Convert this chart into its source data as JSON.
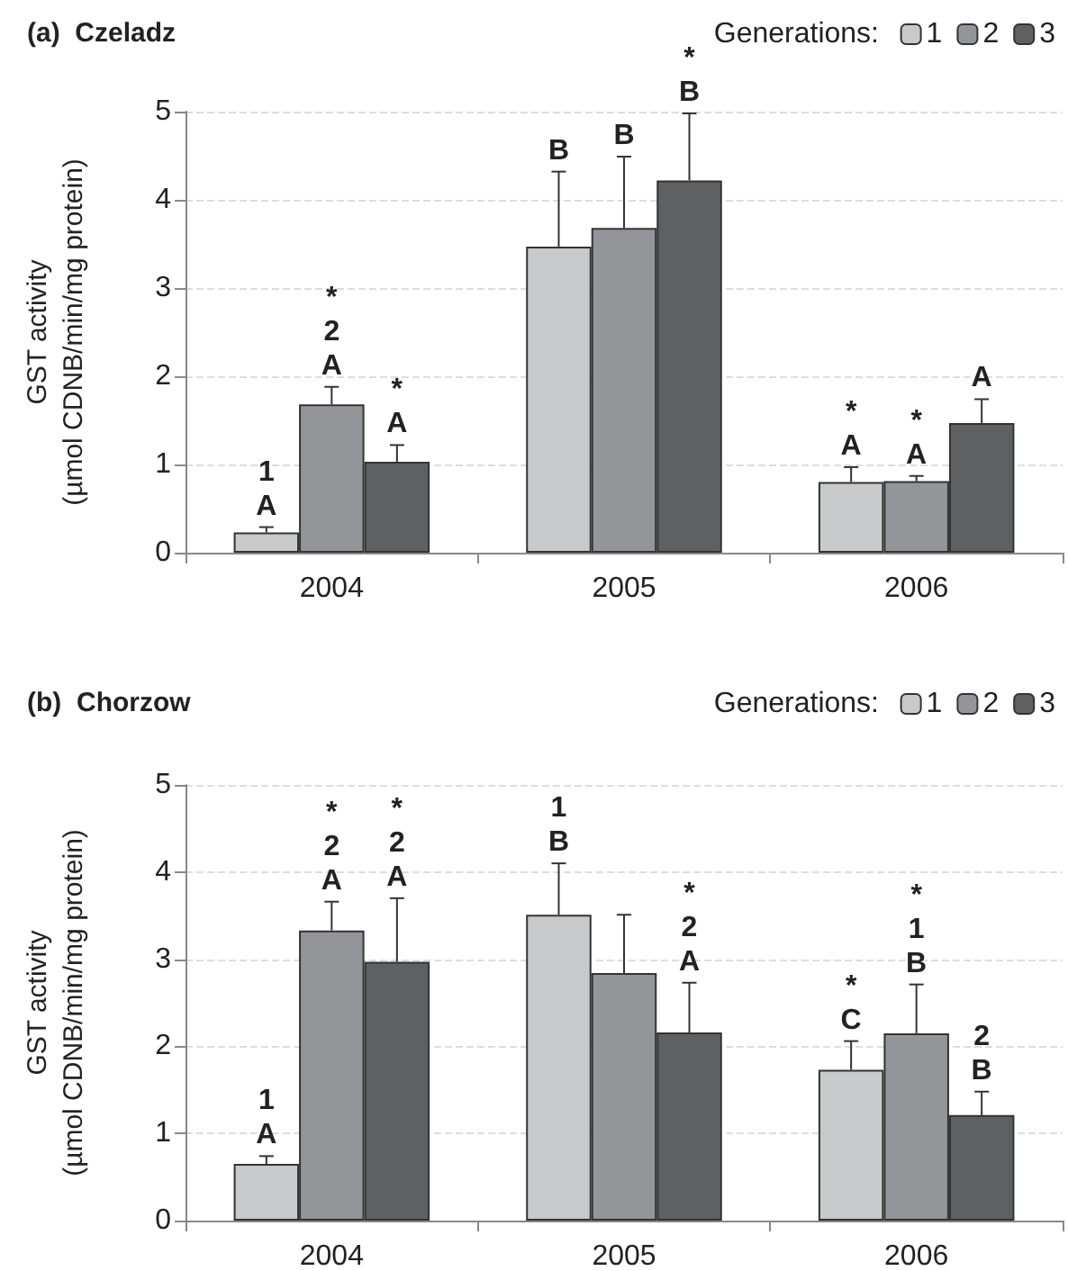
{
  "chart_data": [
    {
      "type": "bar",
      "title": "(a)  Czeladz",
      "ylabel": "GST activity\n(µmol CDNB/min/mg protein)",
      "legend_title": "Generations:",
      "legend": "top right",
      "grid": "y",
      "categories": [
        "2004",
        "2005",
        "2006"
      ],
      "ylim": [
        0,
        5
      ],
      "yticks": [
        0,
        1,
        2,
        3,
        4,
        5
      ],
      "series": [
        {
          "name": "1",
          "color": "#c8c9cb",
          "values": [
            0.23,
            3.47,
            0.8
          ],
          "errors": [
            [
              0.23,
              0.29
            ],
            [
              3.47,
              4.32
            ],
            [
              0.8,
              0.97
            ]
          ]
        },
        {
          "name": "2",
          "color": "#939598",
          "values": [
            1.68,
            3.68,
            0.81
          ],
          "errors": [
            [
              1.68,
              1.88
            ],
            [
              3.68,
              4.49
            ],
            [
              0.81,
              0.87
            ]
          ]
        },
        {
          "name": "3",
          "color": "#5f6062",
          "values": [
            1.03,
            4.22,
            1.47
          ],
          "errors": [
            [
              1.03,
              1.22
            ],
            [
              4.22,
              4.98
            ],
            [
              1.47,
              1.74
            ]
          ]
        }
      ],
      "annotations": [
        "1\nA",
        "*\n2\nA",
        "*\nA",
        "B",
        "B",
        "*\nB",
        "*\nA",
        "*\nA",
        "A"
      ]
    },
    {
      "type": "bar",
      "title": "(b)  Chorzow",
      "ylabel": "GST activity\n(µmol CDNB/min/mg protein)",
      "legend_title": "Generations:",
      "legend": "top right",
      "grid": "y",
      "categories": [
        "2004",
        "2005",
        "2006"
      ],
      "ylim": [
        0,
        5
      ],
      "yticks": [
        0,
        1,
        2,
        3,
        4,
        5
      ],
      "series": [
        {
          "name": "1",
          "color": "#c8c9cb",
          "values": [
            0.65,
            3.51,
            1.73
          ],
          "errors": [
            [
              0.65,
              0.74
            ],
            [
              3.51,
              4.1
            ],
            [
              1.73,
              2.06
            ]
          ]
        },
        {
          "name": "2",
          "color": "#939598",
          "values": [
            3.33,
            2.84,
            2.15
          ],
          "errors": [
            [
              3.33,
              3.66
            ],
            [
              2.84,
              3.51
            ],
            [
              2.15,
              2.71
            ]
          ]
        },
        {
          "name": "3",
          "color": "#5f6062",
          "values": [
            2.97,
            2.16,
            1.21
          ],
          "errors": [
            [
              2.97,
              3.7
            ],
            [
              2.16,
              2.73
            ],
            [
              1.21,
              1.48
            ]
          ]
        }
      ],
      "annotations": [
        "1\nA",
        "*\n2\nA",
        "*\n2\nA",
        "1\nB",
        null,
        "*\n2\nA",
        "*\nC",
        "*\n1\nB",
        "2\nB"
      ]
    }
  ]
}
